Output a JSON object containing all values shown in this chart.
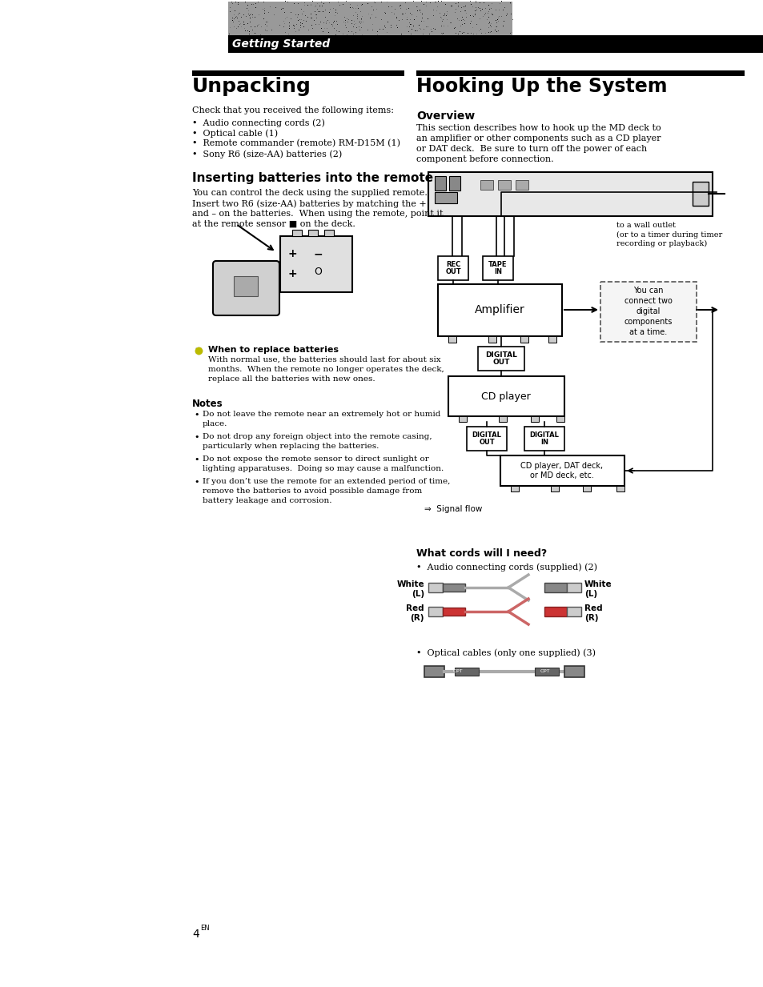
{
  "bg_color": "#ffffff",
  "page_width": 9.54,
  "page_height": 12.33,
  "header_text": "Getting Started",
  "header_text_color": "#ffffff",
  "unpacking_title": "Unpacking",
  "hooking_title": "Hooking Up the System",
  "overview_title": "Overview",
  "inserting_title": "Inserting batteries into the remote",
  "what_cords_title": "What cords will I need?",
  "notes_title": "Notes",
  "when_replace_title": "When to replace batteries",
  "page_num": "4",
  "unpack_body": "Check that you received the following items:",
  "unpack_items": [
    "Audio connecting cords (2)",
    "Optical cable (1)",
    "Remote commander (remote) RM-D15M (1)",
    "Sony R6 (size-AA) batteries (2)"
  ],
  "insert_body_lines": [
    "You can control the deck using the supplied remote.",
    "Insert two R6 (size-AA) batteries by matching the +",
    "and – on the batteries.  When using the remote, point it",
    "at the remote sensor ■ on the deck."
  ],
  "when_body_lines": [
    "With normal use, the batteries should last for about six",
    "months.  When the remote no longer operates the deck,",
    "replace all the batteries with new ones."
  ],
  "notes_items": [
    [
      "Do not leave the remote near an extremely hot or humid",
      "place."
    ],
    [
      "Do not drop any foreign object into the remote casing,",
      "particularly when replacing the batteries."
    ],
    [
      "Do not expose the remote sensor to direct sunlight or",
      "lighting apparatuses.  Doing so may cause a malfunction."
    ],
    [
      "If you don’t use the remote for an extended period of time,",
      "remove the batteries to avoid possible damage from",
      "battery leakage and corrosion."
    ]
  ],
  "overview_body_lines": [
    "This section describes how to hook up the MD deck to",
    "an amplifier or other components such as a CD player",
    "or DAT deck.  Be sure to turn off the power of each",
    "component before connection."
  ],
  "what_cords_items": [
    "•  Audio connecting cords (supplied) (2)",
    "•  Optical cables (only one supplied) (3)"
  ],
  "signal_flow_label": "⇒  Signal flow"
}
